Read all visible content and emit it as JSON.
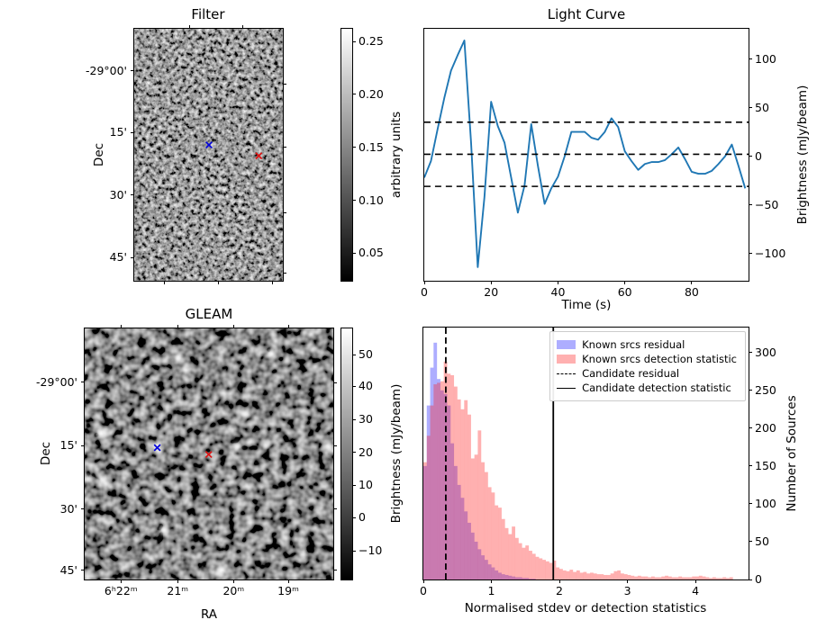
{
  "chart_data": [
    {
      "id": "filter",
      "type": "heatmap",
      "title": "Filter",
      "ylabel": "Dec",
      "yticks": [
        {
          "label": "-29°00'",
          "pos": 0.167
        },
        {
          "label": "15'",
          "pos": 0.411
        },
        {
          "label": "30'",
          "pos": 0.66
        },
        {
          "label": "45'",
          "pos": 0.908
        }
      ],
      "xticks_bottom": [
        0.204,
        0.569,
        0.928
      ],
      "xticks_top": [
        0.371,
        0.731
      ],
      "yticks_right": [
        0.221,
        0.469,
        0.732,
        0.969
      ],
      "markers": [
        {
          "symbol": "x",
          "color": "#0000dd",
          "x": 0.503,
          "y": 0.461
        },
        {
          "symbol": "x",
          "color": "#dd1111",
          "x": 0.838,
          "y": 0.504
        }
      ],
      "colorbar": {
        "label": "arbitrary units",
        "ticks": [
          {
            "label": "0.25",
            "pos": 0.05
          },
          {
            "label": "0.20",
            "pos": 0.26
          },
          {
            "label": "0.15",
            "pos": 0.471
          },
          {
            "label": "0.10",
            "pos": 0.681
          },
          {
            "label": "0.05",
            "pos": 0.891
          }
        ]
      }
    },
    {
      "id": "light_curve",
      "type": "line",
      "title": "Light Curve",
      "xlabel": "Time (s)",
      "ylabel": "Brightness (mJy/beam)",
      "x_range": [
        0,
        97
      ],
      "y_range": [
        -128,
        131
      ],
      "xticks": [
        0,
        20,
        40,
        60,
        80
      ],
      "yticks": [
        100,
        50,
        0,
        -50,
        -100
      ],
      "line_color": "#1f77b4",
      "hline_color": "#000000",
      "dashed_hlines": [
        35,
        2,
        -31
      ],
      "x": [
        0,
        2,
        4,
        6,
        8,
        10,
        12,
        14,
        16,
        18,
        20,
        22,
        24,
        26,
        28,
        30,
        32,
        34,
        36,
        38,
        40,
        42,
        44,
        46,
        48,
        50,
        52,
        54,
        56,
        58,
        60,
        62,
        64,
        66,
        68,
        70,
        72,
        74,
        76,
        78,
        80,
        82,
        84,
        86,
        88,
        90,
        92,
        94,
        96
      ],
      "y": [
        -22,
        -5,
        28,
        60,
        88,
        104,
        119,
        14,
        -114,
        -42,
        56,
        31,
        14,
        -22,
        -58,
        -30,
        33,
        -10,
        -49,
        -33,
        -21,
        0,
        25,
        25,
        25,
        19,
        17,
        25,
        39,
        30,
        5,
        -5,
        -14,
        -8,
        -6,
        -6,
        -4,
        2,
        9,
        -3,
        -16,
        -18,
        -18,
        -15,
        -8,
        0,
        12,
        -10,
        -33
      ]
    },
    {
      "id": "gleam",
      "type": "heatmap",
      "title": "GLEAM",
      "xlabel": "RA",
      "ylabel": "Dec",
      "xticks": [
        {
          "label": "6ʰ22ᵐ",
          "pos": 0.146
        },
        {
          "label": "21ᵐ",
          "pos": 0.374
        },
        {
          "label": "20ᵐ",
          "pos": 0.599
        },
        {
          "label": "19ᵐ",
          "pos": 0.819
        }
      ],
      "yticks": [
        {
          "label": "-29°00'",
          "pos": 0.214
        },
        {
          "label": "15'",
          "pos": 0.466
        },
        {
          "label": "30'",
          "pos": 0.719
        },
        {
          "label": "45'",
          "pos": 0.964
        }
      ],
      "xticks_top": [
        0.146,
        0.374,
        0.599,
        0.819
      ],
      "yticks_right": [
        0.217,
        0.466,
        0.719,
        0.964
      ],
      "sources": [
        {
          "x": 0.377,
          "y": 0.12,
          "r": 4.5
        },
        {
          "x": 0.751,
          "y": 0.101,
          "r": 5.0
        },
        {
          "x": 0.569,
          "y": 0.225,
          "r": 3.0,
          "dim": true
        },
        {
          "x": 0.647,
          "y": 0.341,
          "r": 4.0
        },
        {
          "x": 0.066,
          "y": 0.419,
          "r": 5.0
        },
        {
          "x": 0.292,
          "y": 0.468,
          "r": 4.5
        },
        {
          "x": 0.613,
          "y": 0.472,
          "r": 4.5
        },
        {
          "x": 0.726,
          "y": 0.465,
          "r": 3.5
        },
        {
          "x": 0.977,
          "y": 0.468,
          "r": 4.0
        },
        {
          "x": 0.014,
          "y": 0.599,
          "r": 4.0
        },
        {
          "x": 0.068,
          "y": 0.602,
          "r": 4.5
        },
        {
          "x": 0.32,
          "y": 0.804,
          "r": 5.0
        },
        {
          "x": 0.713,
          "y": 0.851,
          "r": 3.0,
          "dim": true
        },
        {
          "x": 0.55,
          "y": 0.964,
          "r": 5.5
        }
      ],
      "markers": [
        {
          "symbol": "x",
          "color": "#0000dd",
          "x": 0.292,
          "y": 0.475
        },
        {
          "symbol": "x",
          "color": "#dd1111",
          "x": 0.499,
          "y": 0.502
        }
      ],
      "colorbar": {
        "label": "Brightness (mJy/beam)",
        "ticks": [
          {
            "label": "50",
            "pos": 0.104
          },
          {
            "label": "40",
            "pos": 0.231
          },
          {
            "label": "30",
            "pos": 0.363
          },
          {
            "label": "20",
            "pos": 0.494
          },
          {
            "label": "10",
            "pos": 0.624
          },
          {
            "label": "0",
            "pos": 0.754
          },
          {
            "label": "-10",
            "pos": 0.887
          }
        ]
      }
    },
    {
      "id": "histogram",
      "type": "bar",
      "xlabel": "Normalised stdev or detection statistics",
      "ylabel": "Number of Sources",
      "x_range": [
        0,
        4.78
      ],
      "y_range": [
        0,
        333
      ],
      "xticks": [
        0,
        1,
        2,
        3,
        4
      ],
      "yticks": [
        0,
        50,
        100,
        150,
        200,
        250,
        300
      ],
      "bin_width": 0.05,
      "series": [
        {
          "name": "Known srcs residual",
          "color": "rgba(40,40,255,0.38)",
          "start": 0,
          "values": [
            150,
            230,
            280,
            313,
            265,
            250,
            245,
            230,
            180,
            150,
            125,
            108,
            90,
            75,
            62,
            50,
            40,
            32,
            26,
            20,
            16,
            12,
            9,
            7,
            6,
            5,
            4,
            3,
            3,
            2,
            2,
            1,
            1
          ]
        },
        {
          "name": "Known srcs detection statistic",
          "color": "rgba(255,30,30,0.35)",
          "start": 0,
          "values": [
            155,
            190,
            230,
            258,
            260,
            262,
            288,
            272,
            270,
            255,
            238,
            225,
            237,
            218,
            160,
            165,
            197,
            155,
            142,
            122,
            115,
            98,
            95,
            80,
            68,
            60,
            70,
            55,
            48,
            42,
            45,
            38,
            34,
            30,
            28,
            26,
            24,
            22,
            25,
            16,
            14,
            12,
            11,
            13,
            10,
            12,
            9,
            10,
            8,
            9,
            8,
            7,
            7,
            6,
            6,
            8,
            11,
            12,
            8,
            7,
            6,
            5,
            4,
            5,
            4,
            4,
            3,
            4,
            3,
            3,
            4,
            5,
            4,
            3,
            3,
            4,
            3,
            3,
            3,
            4,
            4,
            5,
            4,
            3,
            2,
            3,
            2,
            2,
            3,
            2,
            3
          ]
        }
      ],
      "vlines": [
        {
          "name": "Candidate residual",
          "style": "dashed",
          "x": 0.33
        },
        {
          "name": "Candidate detection statistic",
          "style": "solid",
          "x": 1.91
        }
      ]
    }
  ]
}
